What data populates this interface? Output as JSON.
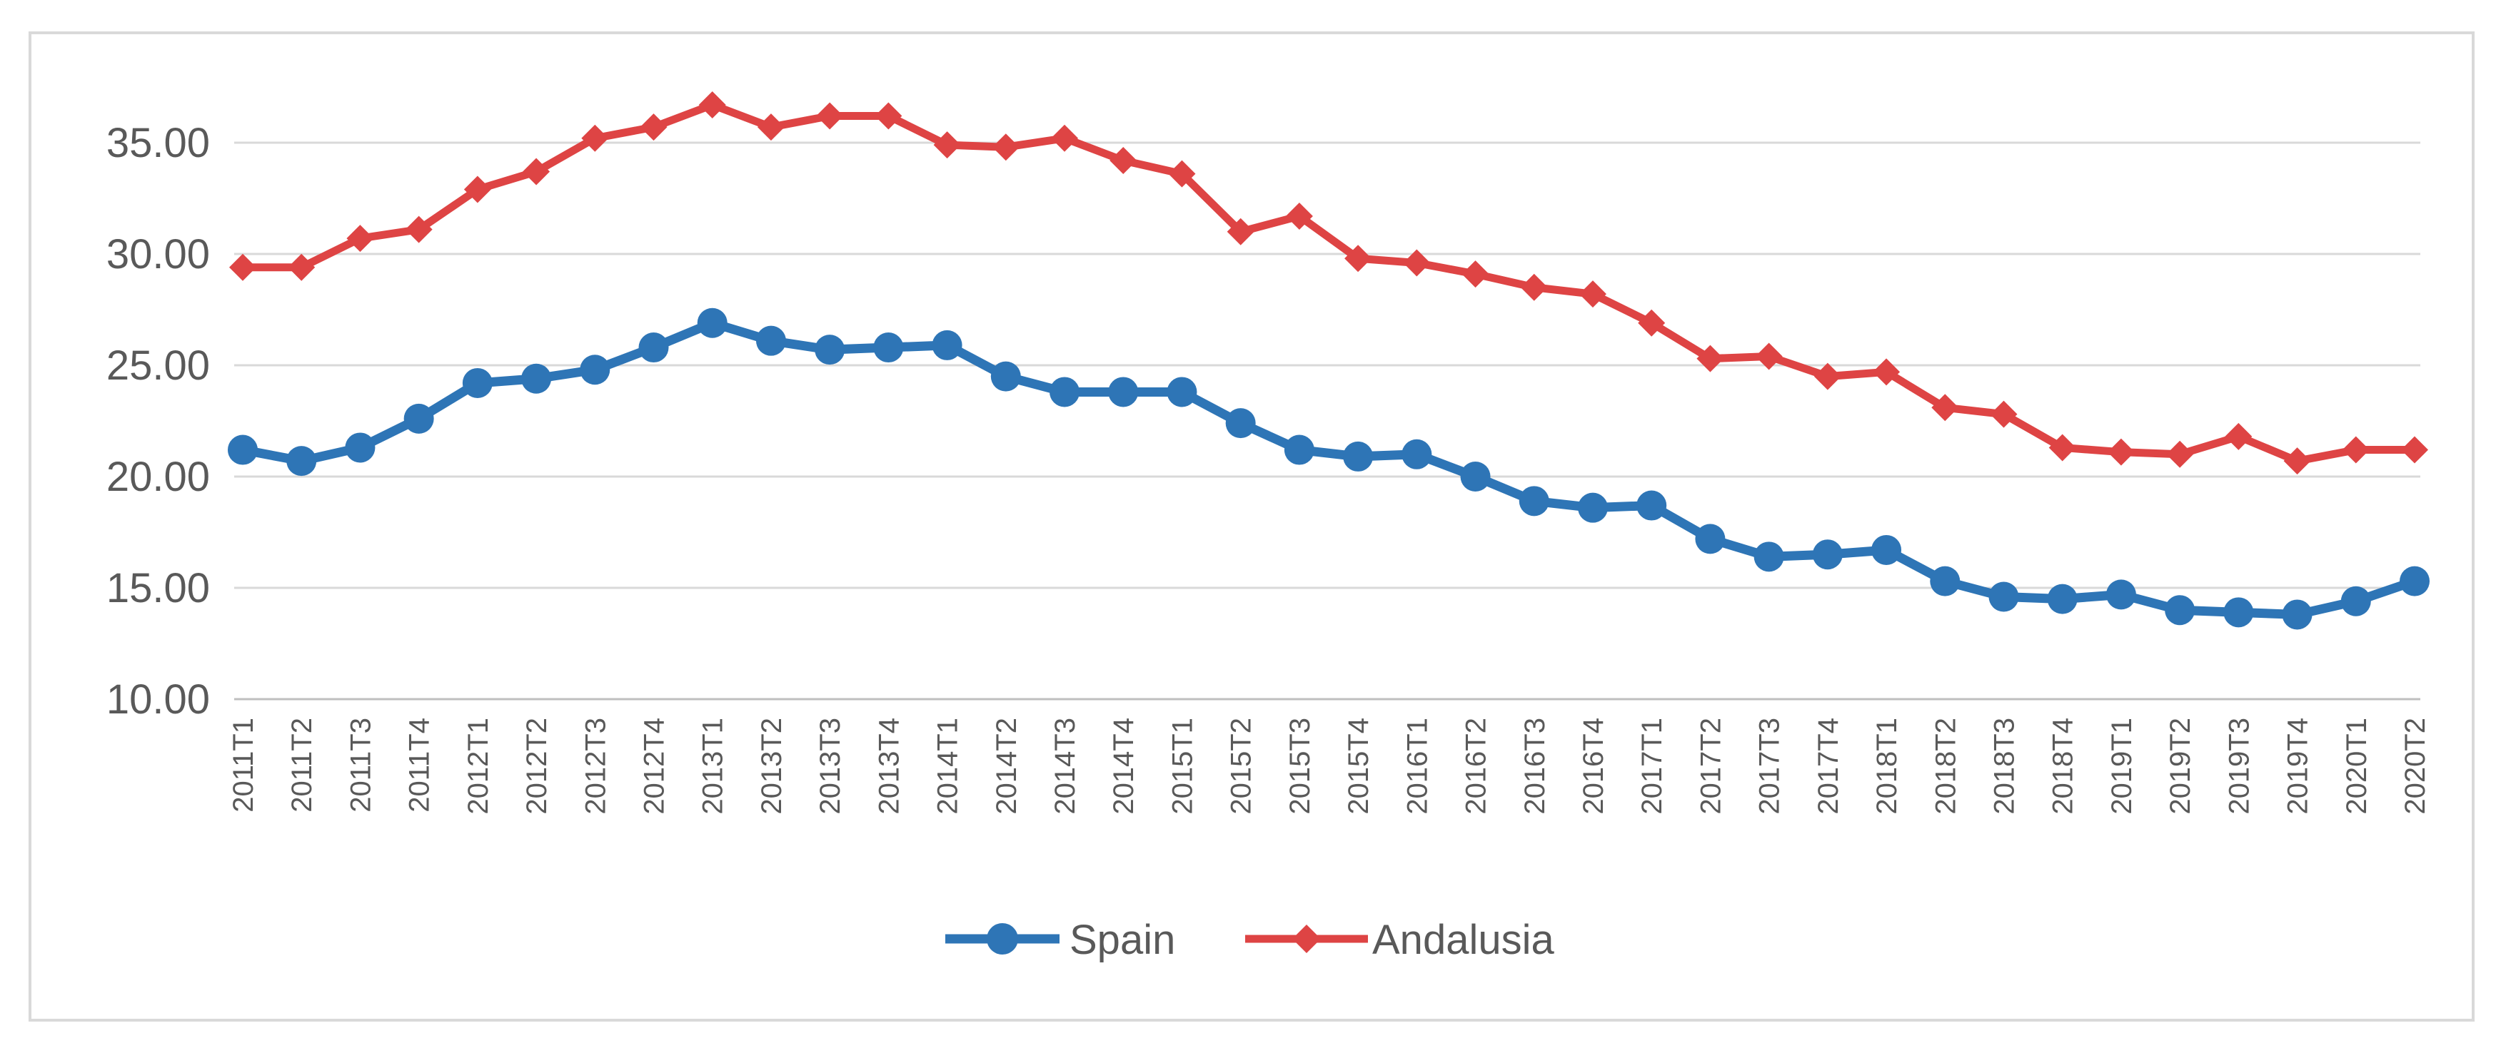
{
  "chart_data": {
    "type": "line",
    "title": "",
    "xlabel": "",
    "ylabel": "",
    "ylim": [
      10,
      37
    ],
    "yticks": [
      "10.00",
      "15.00",
      "20.00",
      "25.00",
      "30.00",
      "35.00"
    ],
    "grid": true,
    "legend_position": "bottom",
    "categories": [
      "2011T1",
      "2011T2",
      "2011T3",
      "2011T4",
      "2012T1",
      "2012T2",
      "2012T3",
      "2012T4",
      "2013T1",
      "2013T2",
      "2013T3",
      "2013T4",
      "2014T1",
      "2014T2",
      "2014T3",
      "2014T4",
      "2015T1",
      "2015T2",
      "2015T3",
      "2015T4",
      "2016T1",
      "2016T2",
      "2016T3",
      "2016T4",
      "2017T1",
      "2017T2",
      "2017T3",
      "2017T4",
      "2018T1",
      "2018T2",
      "2018T3",
      "2018T4",
      "2019T1",
      "2019T2",
      "2019T3",
      "2019T4",
      "2020T1",
      "2020T2"
    ],
    "series": [
      {
        "name": "Spain",
        "color": "#2e75b6",
        "marker": "circle",
        "values": [
          21.2,
          20.7,
          21.3,
          22.6,
          24.2,
          24.4,
          24.8,
          25.8,
          26.9,
          26.1,
          25.7,
          25.8,
          25.9,
          24.5,
          23.8,
          23.8,
          23.8,
          22.4,
          21.2,
          20.9,
          21.0,
          20.0,
          18.9,
          18.6,
          18.7,
          17.2,
          16.4,
          16.5,
          16.7,
          15.3,
          14.6,
          14.5,
          14.7,
          14.0,
          13.9,
          13.8,
          14.4,
          15.3
        ]
      },
      {
        "name": "Andalusia",
        "color": "#de4444",
        "marker": "diamond",
        "values": [
          29.4,
          29.4,
          30.7,
          31.1,
          32.9,
          33.7,
          35.2,
          35.7,
          36.7,
          35.7,
          36.2,
          36.2,
          34.9,
          34.8,
          35.2,
          34.2,
          33.6,
          31.0,
          31.7,
          29.8,
          29.6,
          29.1,
          28.5,
          28.2,
          26.9,
          25.3,
          25.4,
          24.5,
          24.7,
          23.1,
          22.8,
          21.3,
          21.1,
          21.0,
          21.8,
          20.7,
          21.2,
          21.2
        ]
      }
    ]
  }
}
